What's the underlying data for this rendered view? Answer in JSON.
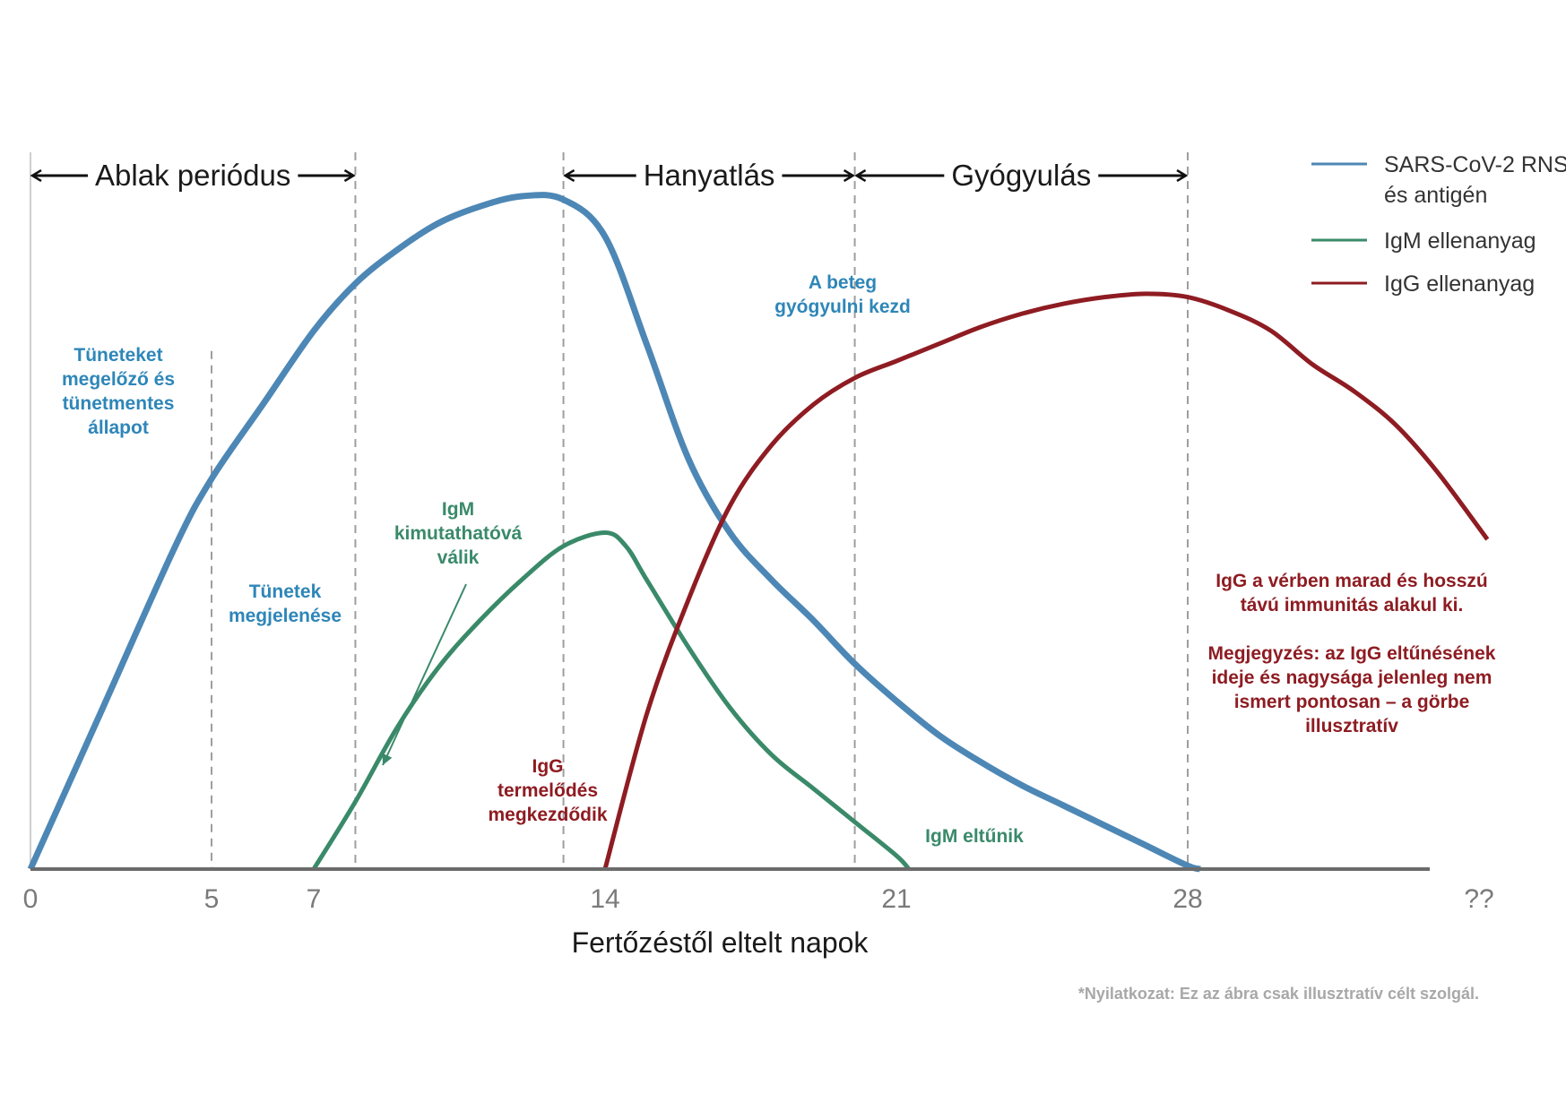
{
  "chart_data": {
    "type": "line",
    "xlabel": "Fertőzéstől eltelt napok",
    "x_ticks": [
      {
        "value": 0,
        "label": "0"
      },
      {
        "value": 5,
        "label": "5"
      },
      {
        "value": 7,
        "label": "7"
      },
      {
        "value": 14,
        "label": "14"
      },
      {
        "value": 21,
        "label": "21"
      },
      {
        "value": 28,
        "label": "28"
      },
      {
        "value": 35,
        "label": "??"
      }
    ],
    "xlim": [
      0,
      35
    ],
    "ylim": [
      0,
      100
    ],
    "grid": false,
    "legend_position": "top-right",
    "colors": {
      "rna": "#4d87b5",
      "igm": "#3a8a6a",
      "igg": "#8e1c22",
      "axis": "#6b6b6b",
      "phase_line": "#9e9e9e",
      "annot_blue": "#2e86b8",
      "annot_green": "#3a8a6a",
      "annot_red": "#8e1c22"
    },
    "series": [
      {
        "name": "SARS-CoV-2 RNS\nés antigén",
        "key": "rna",
        "x": [
          0,
          2,
          4,
          5,
          6,
          7,
          8,
          9,
          10,
          11,
          12,
          13,
          14,
          15,
          16,
          17,
          18,
          19,
          20,
          21,
          22,
          23,
          24,
          25,
          26,
          27,
          28,
          28.3
        ],
        "y": [
          0,
          24,
          48,
          58,
          69,
          80,
          87,
          92,
          96,
          98.5,
          100,
          99.5,
          94,
          78,
          61,
          50,
          43,
          37,
          30.5,
          25,
          20,
          16,
          12.5,
          9.5,
          6.5,
          3.5,
          0.5,
          0
        ]
      },
      {
        "name": "IgM ellenanyag",
        "key": "igm",
        "x": [
          7,
          8,
          9,
          10,
          11,
          12,
          13,
          14,
          14.5,
          15,
          16,
          17,
          18,
          19,
          20,
          21,
          21.3
        ],
        "y": [
          0,
          10,
          21,
          30,
          37,
          43,
          48,
          50,
          48,
          43,
          33,
          24,
          17,
          12,
          7,
          2,
          0
        ]
      },
      {
        "name": "IgG ellenanyag",
        "key": "igg",
        "x": [
          14,
          15,
          16,
          17,
          18,
          19,
          20,
          21,
          22,
          23,
          24,
          25,
          26,
          27,
          28,
          29,
          30,
          31,
          32,
          33,
          34,
          35.2
        ],
        "y": [
          0,
          23,
          40,
          54,
          63,
          69,
          73,
          75.5,
          78,
          80.5,
          82.5,
          84,
          85,
          85.5,
          85,
          83,
          80,
          75,
          71,
          66,
          59,
          49
        ]
      }
    ],
    "phases": [
      {
        "label": "Ablak periódus",
        "start": 0,
        "end": 8
      },
      {
        "label": "Hanyatlás",
        "start": 13,
        "end": 20
      },
      {
        "label": "Gyógyulás",
        "start": 20,
        "end": 28
      }
    ],
    "phase_lines": [
      8,
      13,
      20,
      28
    ],
    "extra_dashed_lines": [
      {
        "x": 5,
        "y_top": 77
      }
    ],
    "annotations": [
      {
        "lines": [
          "Tüneteket",
          "megelőző és",
          "tünetmentes",
          "állapot"
        ],
        "color": "annot_blue"
      },
      {
        "lines": [
          "Tünetek",
          "megjelenése"
        ],
        "color": "annot_blue"
      },
      {
        "lines": [
          "A beteg",
          "gyógyulni kezd"
        ],
        "color": "annot_blue"
      },
      {
        "lines": [
          "IgM",
          "kimutathatóvá",
          "válik"
        ],
        "color": "annot_green"
      },
      {
        "lines": [
          "IgG",
          "termelődés",
          "megkezdődik"
        ],
        "color": "annot_red"
      },
      {
        "lines": [
          "IgM eltűnik"
        ],
        "color": "annot_green"
      },
      {
        "lines": [
          "IgG a vérben marad és hosszú",
          "távú immunitás alakul ki.",
          "",
          "Megjegyzés: az IgG eltűnésének",
          "ideje és nagysága jelenleg nem",
          "ismert pontosan – a görbe",
          "illusztratív"
        ],
        "color": "annot_red"
      }
    ],
    "disclaimer": "*Nyilatkozat: Ez az ábra csak illusztratív célt szolgál."
  }
}
